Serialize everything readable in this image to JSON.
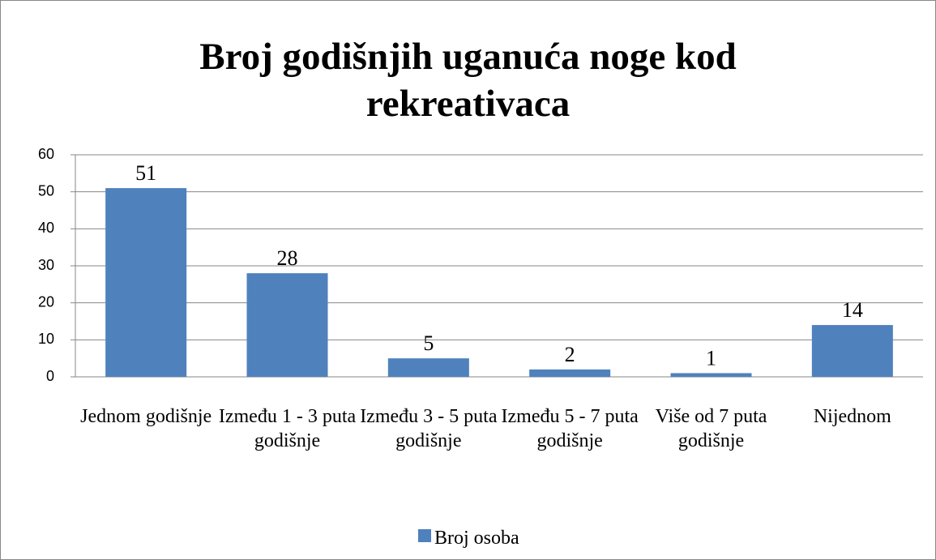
{
  "chart_data": {
    "type": "bar",
    "title": "Broj godišnjih uganuća noge kod rekreativaca",
    "categories": [
      "Jednom godišnje",
      "Između 1 - 3 puta godišnje",
      "Između 3 - 5 puta godišnje",
      "Između 5 - 7 puta godišnje",
      "Više od 7 puta godišnje",
      "Nijednom"
    ],
    "series": [
      {
        "name": "Broj osoba",
        "color": "#4f81bd",
        "values": [
          51,
          28,
          5,
          2,
          1,
          14
        ]
      }
    ],
    "ylim": [
      0,
      60
    ],
    "yticks": [
      0,
      10,
      20,
      30,
      40,
      50,
      60
    ],
    "grid": true,
    "legend": "bottom"
  }
}
